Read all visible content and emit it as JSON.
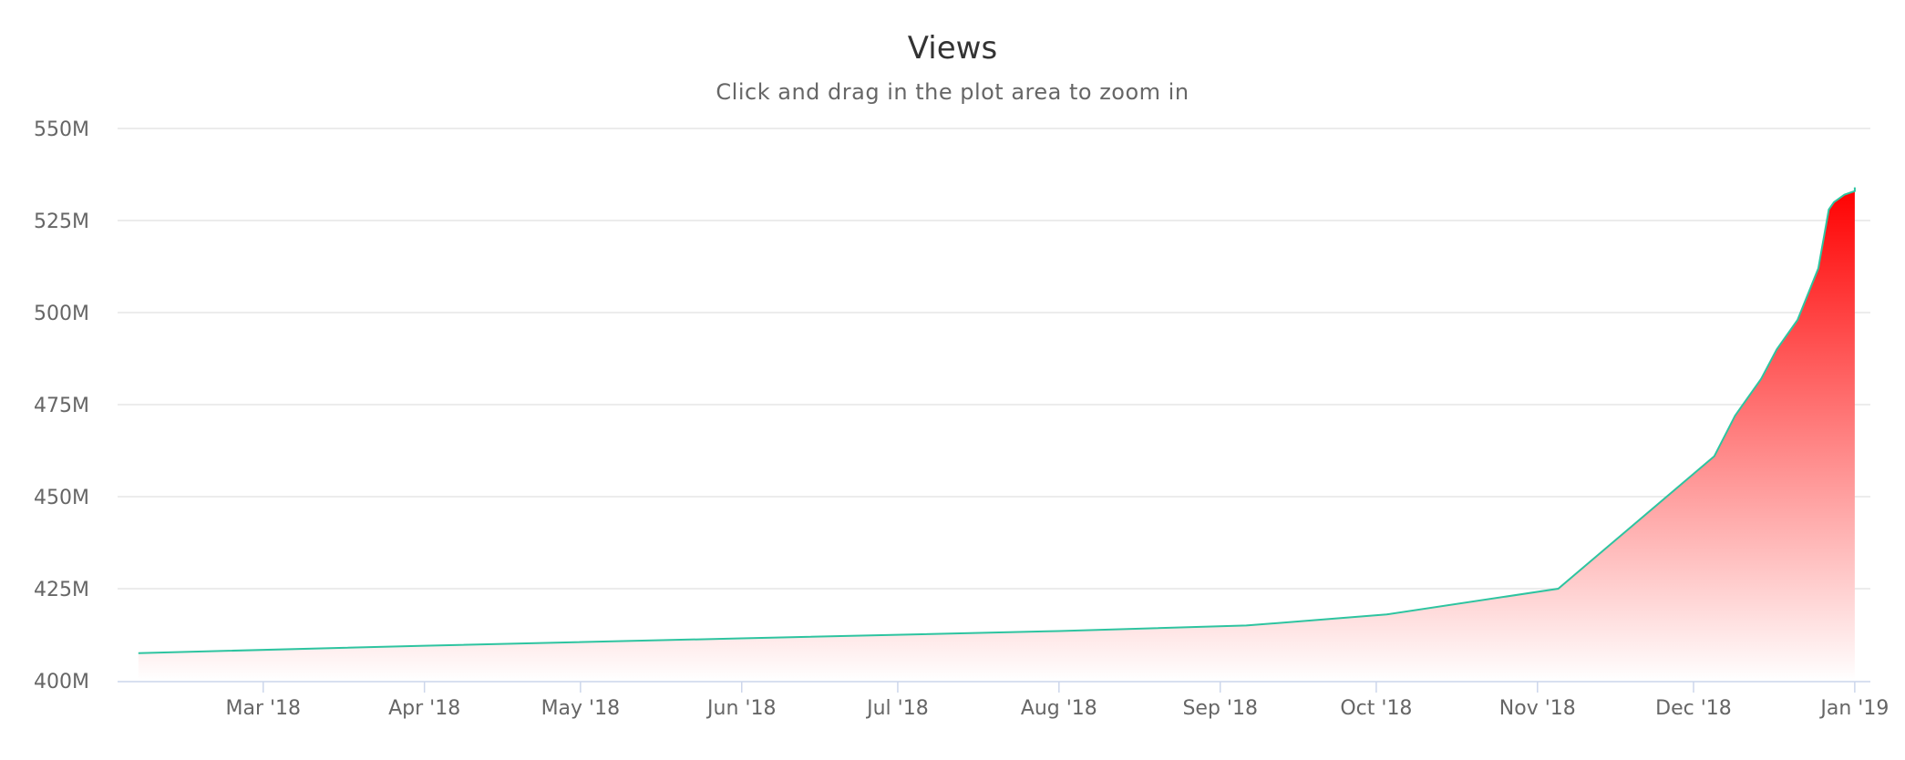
{
  "chart_data": {
    "type": "area",
    "title": "Views",
    "subtitle": "Click and drag in the plot area to zoom in",
    "xlabel": "",
    "ylabel": "",
    "xlim": [
      "2018-02-01",
      "2019-01-04"
    ],
    "ylim": [
      400000000,
      550000000
    ],
    "y_ticks": [
      {
        "value": 400000000,
        "label": "400M"
      },
      {
        "value": 425000000,
        "label": "425M"
      },
      {
        "value": 450000000,
        "label": "450M"
      },
      {
        "value": 475000000,
        "label": "475M"
      },
      {
        "value": 500000000,
        "label": "500M"
      },
      {
        "value": 525000000,
        "label": "525M"
      },
      {
        "value": 550000000,
        "label": "550M"
      }
    ],
    "x_ticks": [
      {
        "date": "2018-03-01",
        "label": "Mar '18"
      },
      {
        "date": "2018-04-01",
        "label": "Apr '18"
      },
      {
        "date": "2018-05-01",
        "label": "May '18"
      },
      {
        "date": "2018-06-01",
        "label": "Jun '18"
      },
      {
        "date": "2018-07-01",
        "label": "Jul '18"
      },
      {
        "date": "2018-08-01",
        "label": "Aug '18"
      },
      {
        "date": "2018-09-01",
        "label": "Sep '18"
      },
      {
        "date": "2018-10-01",
        "label": "Oct '18"
      },
      {
        "date": "2018-11-01",
        "label": "Nov '18"
      },
      {
        "date": "2018-12-01",
        "label": "Dec '18"
      },
      {
        "date": "2019-01-01",
        "label": "Jan '19"
      }
    ],
    "grid": true,
    "legend": "none",
    "series": [
      {
        "line_color": "#2ec4a0",
        "fill_top_color": "#ff0000",
        "fill_bottom_color": "#ffffff",
        "points": [
          {
            "x": "2018-02-05",
            "y": 407500000
          },
          {
            "x": "2018-04-01",
            "y": 409500000
          },
          {
            "x": "2018-06-01",
            "y": 411500000
          },
          {
            "x": "2018-08-01",
            "y": 413500000
          },
          {
            "x": "2018-09-06",
            "y": 415000000
          },
          {
            "x": "2018-10-03",
            "y": 418000000
          },
          {
            "x": "2018-11-05",
            "y": 425000000
          },
          {
            "x": "2018-12-05",
            "y": 461000000
          },
          {
            "x": "2018-12-09",
            "y": 472000000
          },
          {
            "x": "2018-12-14",
            "y": 482000000
          },
          {
            "x": "2018-12-17",
            "y": 490000000
          },
          {
            "x": "2018-12-21",
            "y": 498000000
          },
          {
            "x": "2018-12-25",
            "y": 512000000
          },
          {
            "x": "2018-12-27",
            "y": 528000000
          },
          {
            "x": "2018-12-28",
            "y": 530000000
          },
          {
            "x": "2018-12-30",
            "y": 532000000
          },
          {
            "x": "2019-01-01",
            "y": 533000000
          },
          {
            "x": "2019-01-01",
            "y": 534000000
          }
        ]
      }
    ]
  }
}
